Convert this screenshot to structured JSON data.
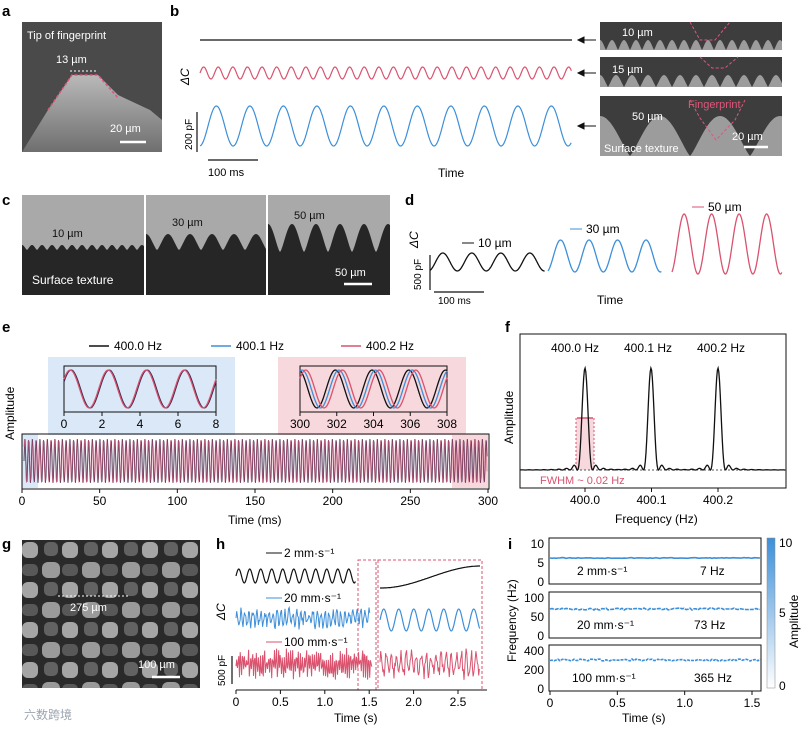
{
  "panels": {
    "a": {
      "letter": "a",
      "title": "Tip of fingerprint",
      "width_label": "13 µm",
      "scale": "20 µm"
    },
    "b": {
      "letter": "b",
      "ylabel": "ΔC",
      "scale_y": "200 pF",
      "scale_x": "100 ms",
      "xlabel": "Time",
      "insets": [
        {
          "label": "10 µm"
        },
        {
          "label": "15 µm"
        },
        {
          "label": "50 µm",
          "fp": "Fingerprint",
          "st": "Surface texture",
          "scale": "20 µm"
        }
      ]
    },
    "c": {
      "letter": "c",
      "labels": [
        "10 µm",
        "30 µm",
        "50 µm"
      ],
      "caption": "Surface texture",
      "scale": "50 µm"
    },
    "d": {
      "letter": "d",
      "ylabel": "ΔC",
      "scale_y": "500 pF",
      "scale_x": "100 ms",
      "xlabel": "Time",
      "series": [
        "10 µm",
        "30 µm",
        "50 µm"
      ]
    },
    "e": {
      "letter": "e",
      "ylabel": "Amplitude",
      "xlabel": "Time (ms)",
      "xticks": [
        "0",
        "50",
        "100",
        "150",
        "200",
        "250",
        "300"
      ],
      "legend": [
        "400.0 Hz",
        "400.1 Hz",
        "400.2 Hz"
      ],
      "inset1_ticks": [
        "0",
        "2",
        "4",
        "6",
        "8"
      ],
      "inset2_ticks": [
        "300",
        "302",
        "304",
        "306",
        "308"
      ]
    },
    "f": {
      "letter": "f",
      "ylabel": "Amplitude",
      "xlabel": "Frequency (Hz)",
      "peaks": [
        "400.0 Hz",
        "400.1 Hz",
        "400.2 Hz"
      ],
      "xticks": [
        "400.0",
        "400.1",
        "400.2"
      ],
      "fwhm": "FWHM ~ 0.02 Hz"
    },
    "g": {
      "letter": "g",
      "label": "275 µm",
      "scale": "100 µm"
    },
    "h": {
      "letter": "h",
      "ylabel": "ΔC",
      "scale_y": "500 pF",
      "xlabel": "Time (s)",
      "xticks": [
        "0",
        "0.5",
        "1.0",
        "1.5",
        "2.0",
        "2.5"
      ],
      "series": [
        "2 mm·s⁻¹",
        "20 mm·s⁻¹",
        "100 mm·s⁻¹"
      ]
    },
    "i": {
      "letter": "i",
      "ylabel": "Frequency (Hz)",
      "xlabel": "Time (s)",
      "cbar_label": "Amplitude",
      "cbar_ticks": [
        "10",
        "5",
        "0"
      ],
      "xticks": [
        "0",
        "0.5",
        "1.0",
        "1.5"
      ],
      "rows": [
        {
          "speed": "2 mm·s⁻¹",
          "freq": "7 Hz",
          "yticks": [
            "10",
            "5",
            "0"
          ]
        },
        {
          "speed": "20 mm·s⁻¹",
          "freq": "73 Hz",
          "yticks": [
            "100",
            "50",
            "0"
          ]
        },
        {
          "speed": "100 mm·s⁻¹",
          "freq": "365 Hz",
          "yticks": [
            "400",
            "200",
            "0"
          ]
        }
      ]
    }
  },
  "watermark": "六数跨境",
  "colors": {
    "black": "#111111",
    "blue": "#3d8fd9",
    "red": "#d9536f",
    "pinkbg": "#f6d8dd",
    "bluebg": "#dbe8f7",
    "sem": "#8a8a8a"
  }
}
